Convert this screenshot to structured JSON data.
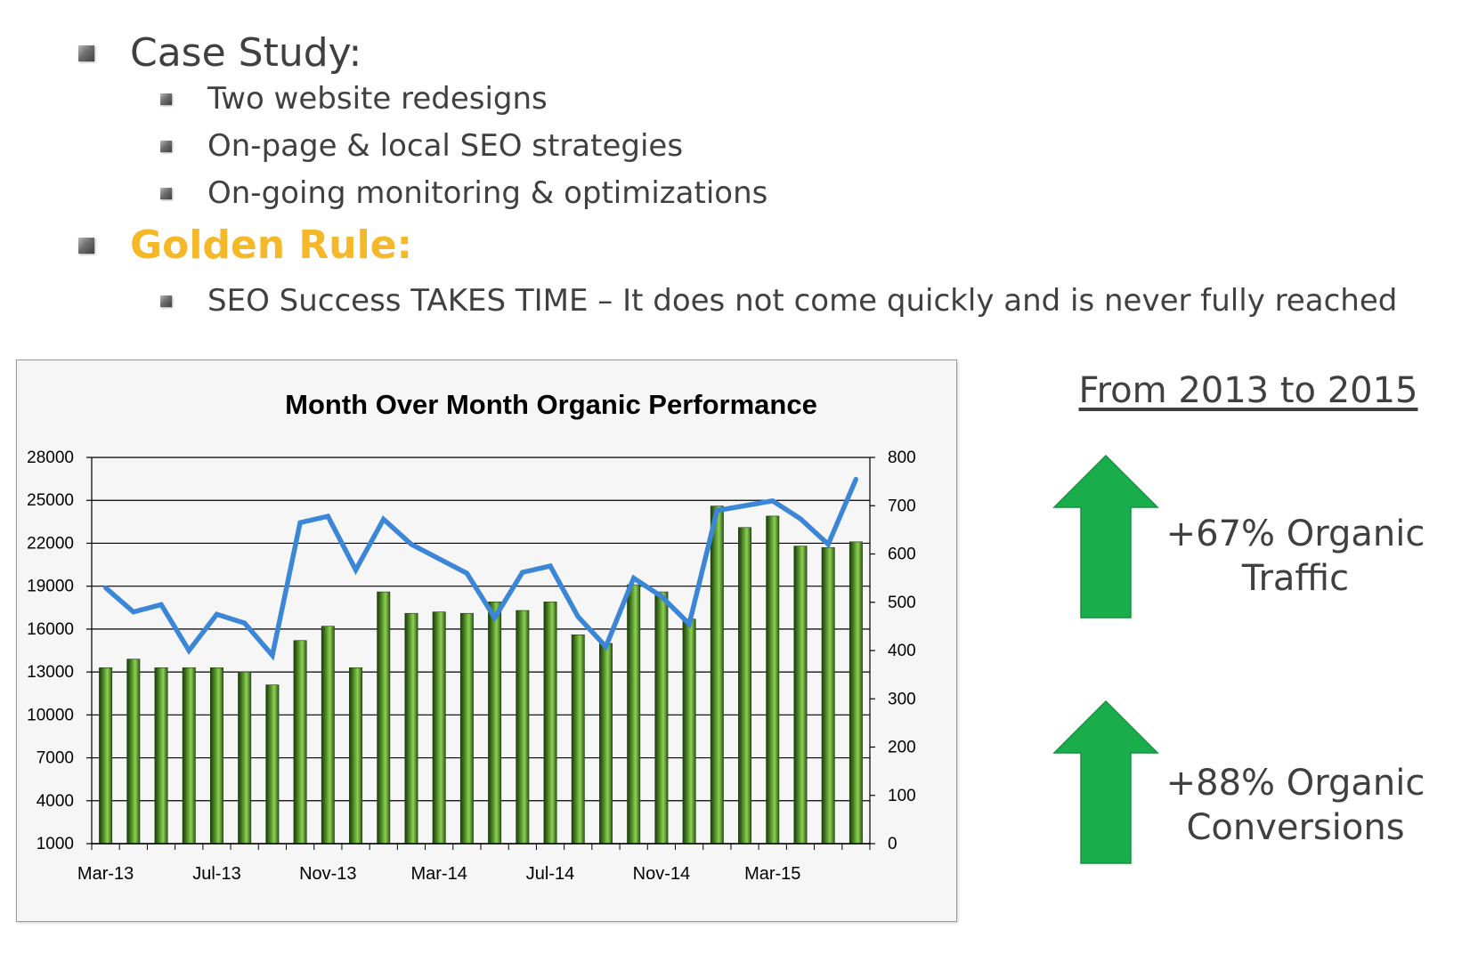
{
  "slide": {
    "bullets": [
      {
        "text": "Case Study:"
      },
      {
        "text": "Two website redesigns"
      },
      {
        "text": "On-page & local SEO strategies"
      },
      {
        "text": "On-going monitoring & optimizations"
      },
      {
        "text": "Golden Rule:"
      },
      {
        "text": "SEO Success TAKES TIME – It does not come quickly and is never fully reached"
      }
    ],
    "accent_color": "#f4b829"
  },
  "summary": {
    "heading": "From 2013 to 2015",
    "stats": [
      {
        "line1": "+67% Organic",
        "line2": "Traffic"
      },
      {
        "line1": "+88% Organic",
        "line2": "Conversions"
      }
    ],
    "arrow_color": "#1aad4b"
  },
  "chart_data": {
    "type": "bar",
    "title": "Month Over Month Organic Performance",
    "x_ticks": [
      "Mar-13",
      "Jul-13",
      "Nov-13",
      "Mar-14",
      "Jul-14",
      "Nov-14",
      "Mar-15"
    ],
    "x_tick_every": 4,
    "ylim": [
      1000,
      28000
    ],
    "y_ticks": [
      1000,
      4000,
      7000,
      10000,
      13000,
      16000,
      19000,
      22000,
      25000,
      28000
    ],
    "y2lim": [
      0,
      800
    ],
    "y2_ticks": [
      0,
      100,
      200,
      300,
      400,
      500,
      600,
      700,
      800
    ],
    "grid": true,
    "series": [
      {
        "type": "bar",
        "axis": "left",
        "color": "#5f9f2c",
        "values": [
          13300,
          13900,
          13300,
          13300,
          13300,
          13000,
          12100,
          15200,
          16200,
          13300,
          18600,
          17100,
          17200,
          17100,
          17900,
          17300,
          17900,
          15600,
          15000,
          19100,
          18600,
          16700,
          24600,
          23100,
          23900,
          21800,
          21700,
          22100
        ]
      },
      {
        "type": "line",
        "axis": "right",
        "color": "#3b86d6",
        "values": [
          530,
          480,
          495,
          400,
          475,
          457,
          390,
          665,
          678,
          567,
          672,
          620,
          590,
          560,
          468,
          562,
          575,
          470,
          408,
          550,
          512,
          455,
          690,
          700,
          710,
          673,
          620,
          755
        ]
      }
    ]
  }
}
